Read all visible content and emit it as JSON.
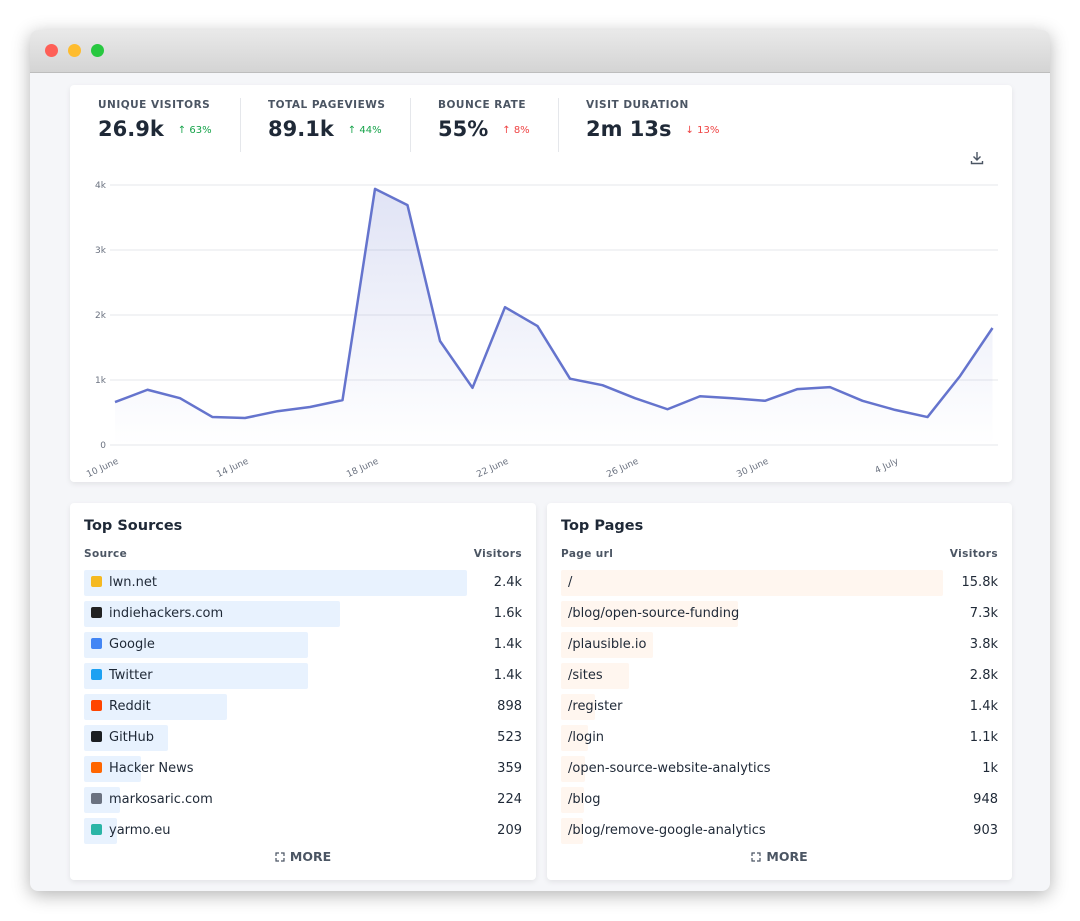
{
  "stats": [
    {
      "label": "UNIQUE VISITORS",
      "value": "26.9k",
      "change": "↑ 63%",
      "color": "#16a34a"
    },
    {
      "label": "TOTAL PAGEVIEWS",
      "value": "89.1k",
      "change": "↑ 44%",
      "color": "#16a34a"
    },
    {
      "label": "BOUNCE RATE",
      "value": "55%",
      "change": "↑ 8%",
      "color": "#ef4444"
    },
    {
      "label": "VISIT DURATION",
      "value": "2m 13s",
      "change": "↓ 13%",
      "color": "#ef4444"
    }
  ],
  "chart_data": {
    "type": "line",
    "categories": [
      "10 June",
      null,
      null,
      null,
      "14 June",
      null,
      null,
      null,
      "18 June",
      null,
      null,
      null,
      "22 June",
      null,
      null,
      null,
      "26 June",
      null,
      null,
      null,
      "30 June",
      null,
      null,
      null,
      "4 July",
      null,
      null,
      null
    ],
    "values": [
      660,
      850,
      720,
      430,
      415,
      520,
      585,
      690,
      3940,
      3690,
      1600,
      880,
      2120,
      1830,
      1020,
      920,
      720,
      550,
      750,
      720,
      680,
      860,
      890,
      680,
      540,
      430,
      1060,
      1800
    ],
    "color": "#6574cd",
    "ylim": [
      0,
      4000
    ],
    "yticks": [
      0,
      {
        "value": 1000,
        "label": "1k"
      },
      {
        "value": 2000,
        "label": "2k"
      },
      {
        "value": 3000,
        "label": "3k"
      },
      {
        "value": 4000,
        "label": "4k"
      }
    ],
    "grid": true
  },
  "sources": {
    "title": "Top Sources",
    "col1": "Source",
    "col2": "Visitors",
    "more": "MORE",
    "color": "#e8f2fe",
    "rows": [
      "lwn.net",
      "indiehackers.com",
      "Google",
      "Twitter",
      "Reddit",
      "GitHub",
      "Hacker News",
      "markosaric.com",
      "yarmo.eu"
    ],
    "values": [
      2400,
      1600,
      1400,
      1400,
      898,
      523,
      359,
      224,
      209
    ],
    "value_labels": [
      "2.4k",
      "1.6k",
      "1.4k",
      "1.4k",
      "898",
      "523",
      "359",
      "224",
      "209"
    ]
  },
  "pages": {
    "title": "Top Pages",
    "col1": "Page url",
    "col2": "Visitors",
    "more": "MORE",
    "color": "#fff6ef",
    "rows": [
      "/",
      "/blog/open-source-funding",
      "/plausible.io",
      "/sites",
      "/register",
      "/login",
      "/open-source-website-analytics",
      "/blog",
      "/blog/remove-google-analytics"
    ],
    "values": [
      15800,
      7300,
      3800,
      2800,
      1400,
      1100,
      1000,
      948,
      903
    ],
    "value_labels": [
      "15.8k",
      "7.3k",
      "3.8k",
      "2.8k",
      "1.4k",
      "1.1k",
      "1k",
      "948",
      "903"
    ]
  }
}
